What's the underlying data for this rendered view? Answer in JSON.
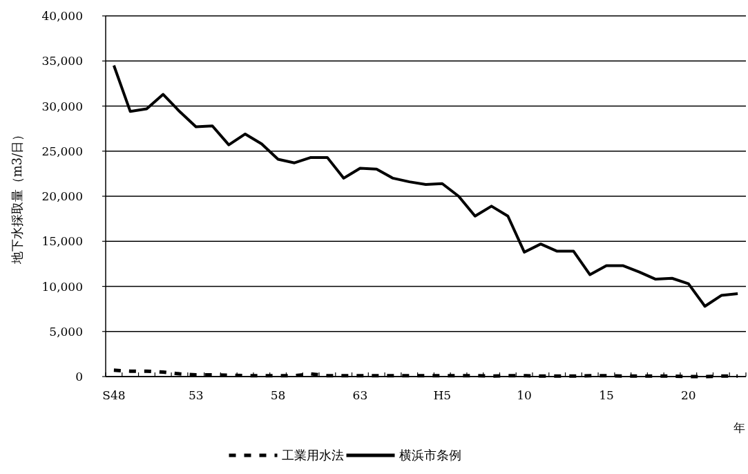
{
  "chart_data": {
    "type": "line",
    "ylabel": "地下水採取量（m3/日）",
    "xlabel": "年",
    "categories": [
      "S48",
      null,
      null,
      null,
      null,
      "53",
      null,
      null,
      null,
      null,
      "58",
      null,
      null,
      null,
      null,
      "63",
      null,
      null,
      null,
      null,
      "H5",
      null,
      null,
      null,
      null,
      "10",
      null,
      null,
      null,
      null,
      "15",
      null,
      null,
      null,
      null,
      "20",
      null,
      null,
      null
    ],
    "series": [
      {
        "name": "工業用水法",
        "color": "#000000",
        "line_style": "dashed",
        "values": [
          700,
          600,
          600,
          500,
          300,
          200,
          200,
          150,
          100,
          100,
          100,
          100,
          300,
          100,
          100,
          100,
          100,
          100,
          100,
          100,
          100,
          100,
          100,
          50,
          100,
          100,
          50,
          50,
          50,
          100,
          100,
          50,
          50,
          50,
          50,
          0,
          0,
          50,
          50
        ]
      },
      {
        "name": "横浜市条例",
        "color": "#000000",
        "line_style": "solid",
        "values": [
          34500,
          29400,
          29700,
          31300,
          29400,
          27700,
          27800,
          25700,
          26900,
          25800,
          24100,
          23700,
          24300,
          24300,
          22000,
          23100,
          23000,
          22000,
          21600,
          21300,
          21400,
          20000,
          17800,
          18900,
          17800,
          13800,
          14700,
          13900,
          13900,
          11300,
          12300,
          12300,
          11600,
          10800,
          10900,
          10300,
          7800,
          9000,
          9200
        ]
      }
    ],
    "ylim": [
      0,
      40000
    ],
    "yticks": [
      {
        "value": 0,
        "label": "0"
      },
      {
        "value": 5000,
        "label": "5,000"
      },
      {
        "value": 10000,
        "label": "10,000"
      },
      {
        "value": 15000,
        "label": "15,000"
      },
      {
        "value": 20000,
        "label": "20,000"
      },
      {
        "value": 25000,
        "label": "25,000"
      },
      {
        "value": 30000,
        "label": "30,000"
      },
      {
        "value": 35000,
        "label": "35,000"
      },
      {
        "value": 40000,
        "label": "40,000"
      }
    ],
    "grid": "y",
    "legend": "bottom",
    "marker": "none"
  }
}
